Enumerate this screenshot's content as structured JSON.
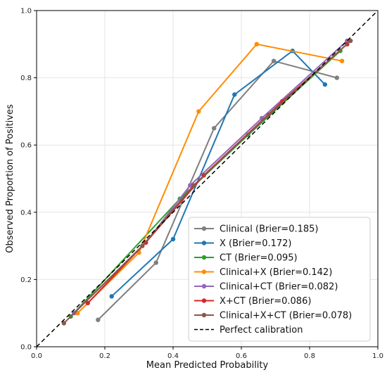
{
  "chart_data": {
    "type": "line",
    "title": "",
    "xlabel": "Mean Predicted Probability",
    "ylabel": "Observed Proportion of Positives",
    "xlim": [
      0.0,
      1.0
    ],
    "ylim": [
      0.0,
      1.0
    ],
    "xticks": [
      "0.0",
      "0.2",
      "0.4",
      "0.6",
      "0.8",
      "1.0"
    ],
    "yticks": [
      "0.0",
      "0.2",
      "0.4",
      "0.6",
      "0.8",
      "1.0"
    ],
    "grid": true,
    "legend_position": "lower-right",
    "series": [
      {
        "name": "Clinical (Brier=0.185)",
        "color": "#7f7f7f",
        "x": [
          0.18,
          0.35,
          0.52,
          0.695,
          0.88
        ],
        "y": [
          0.08,
          0.25,
          0.65,
          0.85,
          0.8
        ]
      },
      {
        "name": "X (Brier=0.172)",
        "color": "#1f77b4",
        "x": [
          0.22,
          0.4,
          0.58,
          0.75,
          0.845
        ],
        "y": [
          0.15,
          0.32,
          0.75,
          0.88,
          0.78
        ]
      },
      {
        "name": "CT (Brier=0.095)",
        "color": "#2ca02c",
        "x": [
          0.1,
          0.42,
          0.62,
          0.89
        ],
        "y": [
          0.09,
          0.44,
          0.63,
          0.88
        ]
      },
      {
        "name": "Clinical+X (Brier=0.142)",
        "color": "#ff8c00",
        "x": [
          0.12,
          0.3,
          0.475,
          0.645,
          0.895
        ],
        "y": [
          0.1,
          0.28,
          0.7,
          0.9,
          0.85
        ]
      },
      {
        "name": "Clinical+CT (Brier=0.082)",
        "color": "#9467bd",
        "x": [
          0.11,
          0.32,
          0.45,
          0.66,
          0.91
        ],
        "y": [
          0.1,
          0.31,
          0.48,
          0.68,
          0.91
        ]
      },
      {
        "name": "X+CT (Brier=0.086)",
        "color": "#d62728",
        "x": [
          0.15,
          0.32,
          0.49,
          0.72,
          0.91
        ],
        "y": [
          0.13,
          0.31,
          0.51,
          0.73,
          0.9
        ]
      },
      {
        "name": "Clinical+X+CT (Brier=0.078)",
        "color": "#8c564b",
        "x": [
          0.08,
          0.31,
          0.46,
          0.68,
          0.92
        ],
        "y": [
          0.07,
          0.3,
          0.48,
          0.69,
          0.91
        ]
      },
      {
        "name": "Perfect calibration",
        "color": "#000000",
        "style": "dashed",
        "x": [
          0.0,
          1.0
        ],
        "y": [
          0.0,
          1.0
        ]
      }
    ]
  }
}
